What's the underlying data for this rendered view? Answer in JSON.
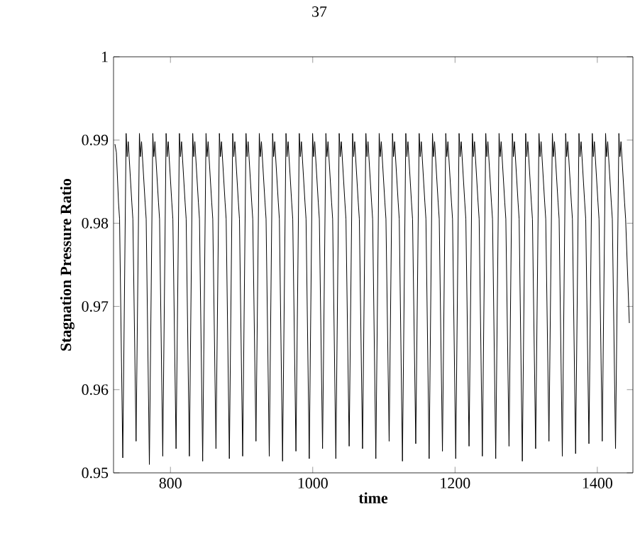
{
  "chart_data": {
    "type": "line",
    "xlabel": "time",
    "ylabel": "Stagnation Pressure Ratio",
    "annotations": [
      "37"
    ],
    "xlim": [
      720,
      1450
    ],
    "ylim": [
      0.95,
      1
    ],
    "xticks": [
      800,
      1000,
      1200,
      1400
    ],
    "yticks": [
      0.95,
      0.96,
      0.97,
      0.98,
      0.99,
      1
    ],
    "series": [
      {
        "color": "#000000",
        "x": [
          722,
          724,
          727,
          728.5,
          733.0,
          737.7,
          739.2,
          740.7,
          745.7,
          747.2,
          751.7,
          756.4,
          757.9,
          759.4,
          764.4,
          765.9,
          770.4,
          775.2,
          776.7,
          778.2,
          783.2,
          784.7,
          789.2,
          793.9,
          795.4,
          796.9,
          801.9,
          803.4,
          807.9,
          812.6,
          814.1,
          815.6,
          820.6,
          822.1,
          826.6,
          831.3,
          832.8,
          834.3,
          839.3,
          840.8,
          845.3,
          850.0,
          851.5,
          853.0,
          858.0,
          859.5,
          864.0,
          868.8,
          870.3,
          871.8,
          876.8,
          878.3,
          882.8,
          887.5,
          889.0,
          890.5,
          895.5,
          897.0,
          901.5,
          906.2,
          907.7,
          909.2,
          914.2,
          915.7,
          920.2,
          924.9,
          926.4,
          927.9,
          932.9,
          934.4,
          938.9,
          943.6,
          945.1,
          946.6,
          951.6,
          953.1,
          957.6,
          962.4,
          963.9,
          965.4,
          970.4,
          971.9,
          976.4,
          981.1,
          982.6,
          984.1,
          989.1,
          990.6,
          995.1,
          999.8,
          1001.3,
          1002.8,
          1007.8,
          1009.3,
          1013.8,
          1018.5,
          1020.0,
          1021.5,
          1026.5,
          1028.0,
          1032.5,
          1037.2,
          1038.7,
          1040.2,
          1045.2,
          1046.7,
          1051.2,
          1056.0,
          1057.5,
          1059.0,
          1064.0,
          1065.5,
          1070.0,
          1074.7,
          1076.2,
          1077.7,
          1082.7,
          1084.2,
          1088.7,
          1093.4,
          1094.9,
          1096.4,
          1101.4,
          1102.9,
          1107.4,
          1112.1,
          1113.6,
          1115.1,
          1120.1,
          1121.6,
          1126.1,
          1130.8,
          1132.3,
          1133.8,
          1138.8,
          1140.3,
          1144.8,
          1149.6,
          1151.1,
          1152.6,
          1157.6,
          1159.1,
          1163.6,
          1168.3,
          1169.8,
          1171.3,
          1176.3,
          1177.8,
          1182.3,
          1187.0,
          1188.5,
          1190.0,
          1195.0,
          1196.5,
          1201.0,
          1205.7,
          1207.2,
          1208.7,
          1213.7,
          1215.2,
          1219.7,
          1224.4,
          1225.9,
          1227.4,
          1232.4,
          1233.9,
          1238.4,
          1243.2,
          1244.7,
          1246.2,
          1251.2,
          1252.7,
          1257.2,
          1261.9,
          1263.4,
          1264.9,
          1269.9,
          1271.4,
          1275.9,
          1280.6,
          1282.1,
          1283.6,
          1288.6,
          1290.1,
          1294.6,
          1299.3,
          1300.8,
          1302.3,
          1307.3,
          1308.8,
          1313.3,
          1318.0,
          1319.5,
          1321.0,
          1326.0,
          1327.5,
          1332.0,
          1336.8,
          1338.3,
          1339.8,
          1344.8,
          1346.3,
          1350.8,
          1355.5,
          1357.0,
          1358.5,
          1363.5,
          1365.0,
          1369.5,
          1374.2,
          1375.7,
          1377.2,
          1382.2,
          1383.7,
          1388.2,
          1392.9,
          1394.4,
          1395.9,
          1400.9,
          1402.4,
          1406.9,
          1411.6,
          1413.1,
          1414.6,
          1419.6,
          1421.1,
          1425.6,
          1430.3,
          1431.8,
          1433.3,
          1438.3,
          1439.8,
          1445
        ],
        "values": [
          0.9895,
          0.9885,
          0.9825,
          0.9805,
          0.9518,
          0.9908,
          0.988,
          0.9898,
          0.9825,
          0.9805,
          0.9538,
          0.9908,
          0.988,
          0.9898,
          0.9825,
          0.9805,
          0.951,
          0.9908,
          0.988,
          0.9898,
          0.9825,
          0.9805,
          0.952,
          0.9908,
          0.988,
          0.9898,
          0.9825,
          0.9805,
          0.9529,
          0.9908,
          0.988,
          0.9898,
          0.9825,
          0.9805,
          0.952,
          0.9908,
          0.988,
          0.9898,
          0.9825,
          0.9805,
          0.9514,
          0.9908,
          0.988,
          0.9898,
          0.9825,
          0.9805,
          0.9529,
          0.9908,
          0.988,
          0.9898,
          0.9825,
          0.9805,
          0.9517,
          0.9908,
          0.988,
          0.9898,
          0.9825,
          0.9805,
          0.952,
          0.9908,
          0.988,
          0.9898,
          0.9825,
          0.9805,
          0.9538,
          0.9908,
          0.988,
          0.9898,
          0.9825,
          0.9805,
          0.952,
          0.9908,
          0.988,
          0.9898,
          0.9825,
          0.9805,
          0.9514,
          0.9908,
          0.988,
          0.9898,
          0.9825,
          0.9805,
          0.9526,
          0.9908,
          0.988,
          0.9898,
          0.9825,
          0.9805,
          0.9517,
          0.9908,
          0.988,
          0.9898,
          0.9825,
          0.9805,
          0.9529,
          0.9908,
          0.988,
          0.9898,
          0.9825,
          0.9805,
          0.9517,
          0.9908,
          0.988,
          0.9898,
          0.9825,
          0.9805,
          0.9532,
          0.9908,
          0.988,
          0.9898,
          0.9825,
          0.9805,
          0.9529,
          0.9908,
          0.988,
          0.9898,
          0.9825,
          0.9805,
          0.9517,
          0.9908,
          0.988,
          0.9898,
          0.9825,
          0.9805,
          0.9538,
          0.9908,
          0.988,
          0.9898,
          0.9825,
          0.9805,
          0.9514,
          0.9908,
          0.988,
          0.9898,
          0.9825,
          0.9805,
          0.9535,
          0.9908,
          0.988,
          0.9898,
          0.9825,
          0.9805,
          0.9517,
          0.9908,
          0.988,
          0.9898,
          0.9825,
          0.9805,
          0.9526,
          0.9908,
          0.988,
          0.9898,
          0.9825,
          0.9805,
          0.9517,
          0.9908,
          0.988,
          0.9898,
          0.9825,
          0.9805,
          0.9532,
          0.9908,
          0.988,
          0.9898,
          0.9825,
          0.9805,
          0.952,
          0.9908,
          0.988,
          0.9898,
          0.9825,
          0.9805,
          0.9517,
          0.9908,
          0.988,
          0.9898,
          0.9825,
          0.9805,
          0.9532,
          0.9908,
          0.988,
          0.9898,
          0.9825,
          0.9805,
          0.9514,
          0.9908,
          0.988,
          0.9898,
          0.9825,
          0.9805,
          0.9529,
          0.9908,
          0.988,
          0.9898,
          0.9825,
          0.9805,
          0.9538,
          0.9908,
          0.988,
          0.9898,
          0.9825,
          0.9805,
          0.952,
          0.9908,
          0.988,
          0.9898,
          0.9825,
          0.9805,
          0.9523,
          0.9908,
          0.988,
          0.9898,
          0.9825,
          0.9805,
          0.9535,
          0.9908,
          0.988,
          0.9898,
          0.9825,
          0.9805,
          0.9538,
          0.9908,
          0.988,
          0.9898,
          0.9825,
          0.9805,
          0.9529,
          0.9908,
          0.988,
          0.9898,
          0.9825,
          0.9805,
          0.968
        ]
      }
    ]
  }
}
